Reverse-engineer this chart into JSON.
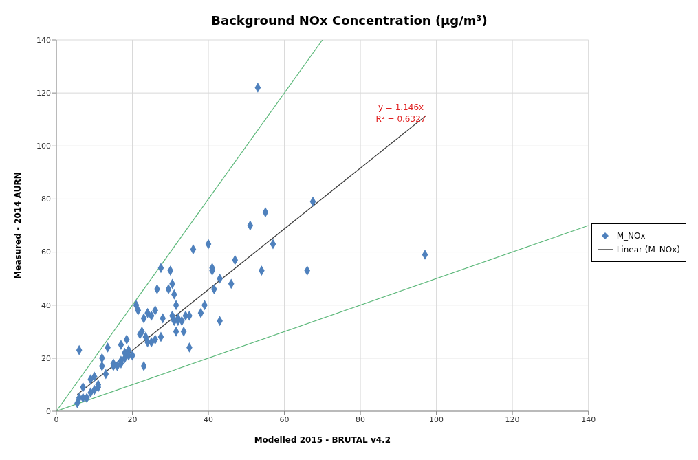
{
  "chart_data": {
    "type": "scatter",
    "title": "Background NOx Concentration (µg/m³)",
    "xlabel": "Modelled 2015 - BRUTAL v4.2",
    "ylabel": "Measured - 2014 AURN",
    "xlim": [
      0,
      140
    ],
    "xticks": [
      0,
      20,
      40,
      60,
      80,
      100,
      120,
      140
    ],
    "ylim": [
      0,
      140
    ],
    "yticks": [
      0,
      20,
      40,
      60,
      80,
      100,
      120,
      140
    ],
    "grid": true,
    "legend": "right",
    "series": [
      {
        "name": "M_NOx",
        "color": "#4f81bd",
        "marker": "diamond",
        "x": [
          6,
          5.5,
          6,
          7,
          7,
          8,
          9,
          9,
          10,
          10,
          11,
          11,
          12,
          12,
          13,
          13.5,
          15,
          15,
          16,
          17,
          17,
          17,
          18,
          18,
          18.5,
          19,
          19,
          20,
          21,
          21.5,
          22,
          22.5,
          23,
          23,
          23.5,
          24,
          24,
          25,
          25,
          26,
          26,
          26.5,
          27.5,
          27.5,
          28,
          29.5,
          30,
          30.5,
          30.5,
          31,
          31,
          31.5,
          31.5,
          32,
          32,
          33,
          33.5,
          34,
          35,
          35,
          36,
          38,
          39,
          40,
          41,
          41,
          41.5,
          43,
          43,
          46,
          47,
          51,
          53,
          54,
          55,
          57,
          66,
          67.5,
          97
        ],
        "values": [
          23,
          3,
          5,
          9,
          5,
          5,
          7,
          12,
          8,
          13,
          10,
          9,
          20,
          17,
          14,
          24,
          17,
          18,
          17,
          18,
          19,
          25,
          22,
          20,
          27,
          23,
          21,
          21,
          40,
          38,
          29,
          30,
          35,
          17,
          28,
          26,
          37,
          36,
          26,
          27,
          38,
          46,
          54,
          28,
          35,
          46,
          53,
          36,
          48,
          44,
          34,
          40,
          30,
          35,
          34,
          34,
          30,
          36,
          36,
          24,
          61,
          37,
          40,
          63,
          54,
          53,
          46,
          50,
          34,
          48,
          57,
          70,
          122,
          53,
          75,
          63,
          53,
          79,
          59
        ]
      },
      {
        "name": "Linear (M_NOx)",
        "type": "line",
        "marker": "none",
        "color": "#404040",
        "x": [
          5.5,
          97.3
        ],
        "values": [
          6.3,
          111.5
        ]
      },
      {
        "type": "line",
        "marker": "none",
        "color": "#5cb87a",
        "x": [
          0,
          70
        ],
        "values": [
          0,
          140
        ]
      },
      {
        "type": "line",
        "marker": "none",
        "color": "#5cb87a",
        "x": [
          0,
          140
        ],
        "values": [
          0,
          70
        ]
      }
    ],
    "annotations": [
      "y = 1.146x",
      "R² = 0.6327"
    ]
  }
}
